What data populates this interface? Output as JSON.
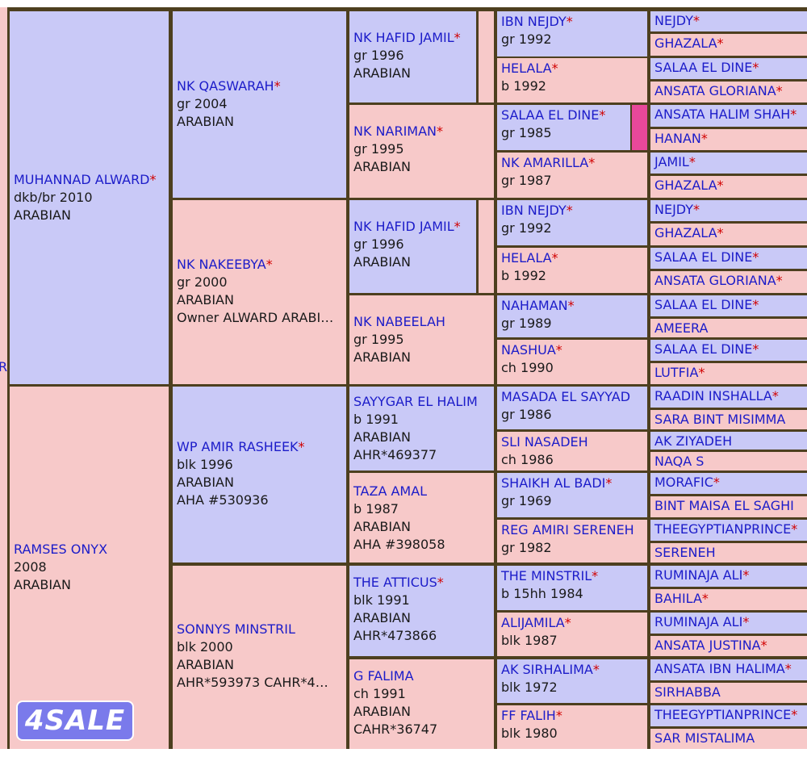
{
  "header_fragment": "",
  "left_edge_letter": "R",
  "badge": "4SALE",
  "gen1": [
    {
      "name": "MUHANNAD ALWARD",
      "star": "*",
      "lines": [
        "dkb/br 2010",
        "ARABIAN"
      ]
    },
    {
      "name": "RAMSES ONYX",
      "star": "",
      "lines": [
        "2008",
        "ARABIAN"
      ]
    }
  ],
  "gen2": [
    {
      "name": "NK QASWARAH",
      "star": "*",
      "lines": [
        "gr 2004",
        "ARABIAN"
      ]
    },
    {
      "name": "NK NAKEEBYA",
      "star": "*",
      "lines": [
        "gr 2000",
        "ARABIAN",
        "Owner ALWARD ARABI…"
      ]
    },
    {
      "name": "WP AMIR RASHEEK",
      "star": "*",
      "lines": [
        "blk 1996",
        "ARABIAN",
        "AHA #530936"
      ]
    },
    {
      "name": "SONNYS MINSTRIL",
      "star": "",
      "lines": [
        "blk 2000",
        "ARABIAN",
        "AHR*593973 CAHR*4…"
      ]
    }
  ],
  "gen3": [
    {
      "name": "NK HAFID JAMIL",
      "star": "*",
      "lines": [
        "gr 1996",
        "ARABIAN"
      ]
    },
    {
      "name": "NK NARIMAN",
      "star": "*",
      "lines": [
        "gr 1995",
        "ARABIAN"
      ]
    },
    {
      "name": "NK HAFID JAMIL",
      "star": "*",
      "lines": [
        "gr 1996",
        "ARABIAN"
      ]
    },
    {
      "name": "NK NABEELAH",
      "star": "",
      "lines": [
        "gr 1995",
        "ARABIAN"
      ]
    },
    {
      "name": "SAYYGAR EL HALIM",
      "star": "",
      "lines": [
        "b 1991",
        "ARABIAN",
        "AHR*469377"
      ]
    },
    {
      "name": "TAZA AMAL",
      "star": "",
      "lines": [
        "b 1987",
        "ARABIAN",
        "AHA #398058"
      ]
    },
    {
      "name": "THE ATTICUS",
      "star": "*",
      "lines": [
        "blk 1991",
        "ARABIAN",
        "AHR*473866"
      ]
    },
    {
      "name": "G FALIMA",
      "star": "",
      "lines": [
        "ch 1991",
        "ARABIAN",
        "CAHR*36747"
      ]
    }
  ],
  "gen4": [
    {
      "name": "IBN NEJDY",
      "star": "*",
      "lines": [
        "gr 1992"
      ]
    },
    {
      "name": "HELALA",
      "star": "*",
      "lines": [
        "b 1992"
      ]
    },
    {
      "name": "SALAA EL DINE",
      "star": "*",
      "lines": [
        "gr 1985"
      ]
    },
    {
      "name": "NK AMARILLA",
      "star": "*",
      "lines": [
        "gr 1987"
      ]
    },
    {
      "name": "IBN NEJDY",
      "star": "*",
      "lines": [
        "gr 1992"
      ]
    },
    {
      "name": "HELALA",
      "star": "*",
      "lines": [
        "b 1992"
      ]
    },
    {
      "name": "NAHAMAN",
      "star": "*",
      "lines": [
        "gr 1989"
      ]
    },
    {
      "name": "NASHUA",
      "star": "*",
      "lines": [
        "ch 1990"
      ]
    },
    {
      "name": "MASADA EL SAYYAD",
      "star": "",
      "lines": [
        "gr 1986"
      ]
    },
    {
      "name": "SLI NASADEH",
      "star": "",
      "lines": [
        "ch 1986"
      ]
    },
    {
      "name": "SHAIKH AL BADI",
      "star": "*",
      "lines": [
        "gr 1969"
      ]
    },
    {
      "name": "REG AMIRI SERENEH",
      "star": "",
      "lines": [
        "gr 1982"
      ]
    },
    {
      "name": "THE MINSTRIL",
      "star": "*",
      "lines": [
        "b 15hh 1984"
      ]
    },
    {
      "name": "ALIJAMILA",
      "star": "*",
      "lines": [
        "blk 1987"
      ]
    },
    {
      "name": "AK SIRHALIMA",
      "star": "*",
      "lines": [
        "blk 1972"
      ]
    },
    {
      "name": "FF FALIH",
      "star": "*",
      "lines": [
        "blk 1980"
      ]
    }
  ],
  "gen5": [
    {
      "name": "NEJDY",
      "star": "*"
    },
    {
      "name": "GHAZALA",
      "star": "*"
    },
    {
      "name": "SALAA EL DINE",
      "star": "*"
    },
    {
      "name": "ANSATA GLORIANA",
      "star": "*"
    },
    {
      "name": "ANSATA HALIM SHAH",
      "star": "*"
    },
    {
      "name": "HANAN",
      "star": "*"
    },
    {
      "name": "JAMIL",
      "star": "*"
    },
    {
      "name": "GHAZALA",
      "star": "*"
    },
    {
      "name": "NEJDY",
      "star": "*"
    },
    {
      "name": "GHAZALA",
      "star": "*"
    },
    {
      "name": "SALAA EL DINE",
      "star": "*"
    },
    {
      "name": "ANSATA GLORIANA",
      "star": "*"
    },
    {
      "name": "SALAA EL DINE",
      "star": "*"
    },
    {
      "name": "AMEERA",
      "star": ""
    },
    {
      "name": "SALAA EL DINE",
      "star": "*"
    },
    {
      "name": "LUTFIA",
      "star": "*"
    },
    {
      "name": "RAADIN INSHALLA",
      "star": "*"
    },
    {
      "name": "SARA BINT MISIMMA",
      "star": ""
    },
    {
      "name": "AK ZIYADEH",
      "star": ""
    },
    {
      "name": "NAQA S",
      "star": ""
    },
    {
      "name": "MORAFIC",
      "star": "*"
    },
    {
      "name": "BINT MAISA EL SAGHI",
      "star": ""
    },
    {
      "name": "THEEGYPTIANPRINCE",
      "star": "*"
    },
    {
      "name": "SERENEH",
      "star": ""
    },
    {
      "name": "RUMINAJA ALI",
      "star": "*"
    },
    {
      "name": "BAHILA",
      "star": "*"
    },
    {
      "name": "RUMINAJA ALI",
      "star": "*"
    },
    {
      "name": "ANSATA JUSTINA",
      "star": "*"
    },
    {
      "name": "ANSATA IBN HALIMA",
      "star": "*"
    },
    {
      "name": "SIRHABBA",
      "star": ""
    },
    {
      "name": "THEEGYPTIANPRINCE",
      "star": "*"
    },
    {
      "name": "SAR MISTALIMA",
      "star": ""
    }
  ],
  "colors": {
    "sire": "#c9c9f7",
    "dam": "#f7c9c9",
    "name": "#1c1cc9",
    "star": "#d10000",
    "border": "#4d3f1f",
    "extra_marker": "#e8489a"
  }
}
